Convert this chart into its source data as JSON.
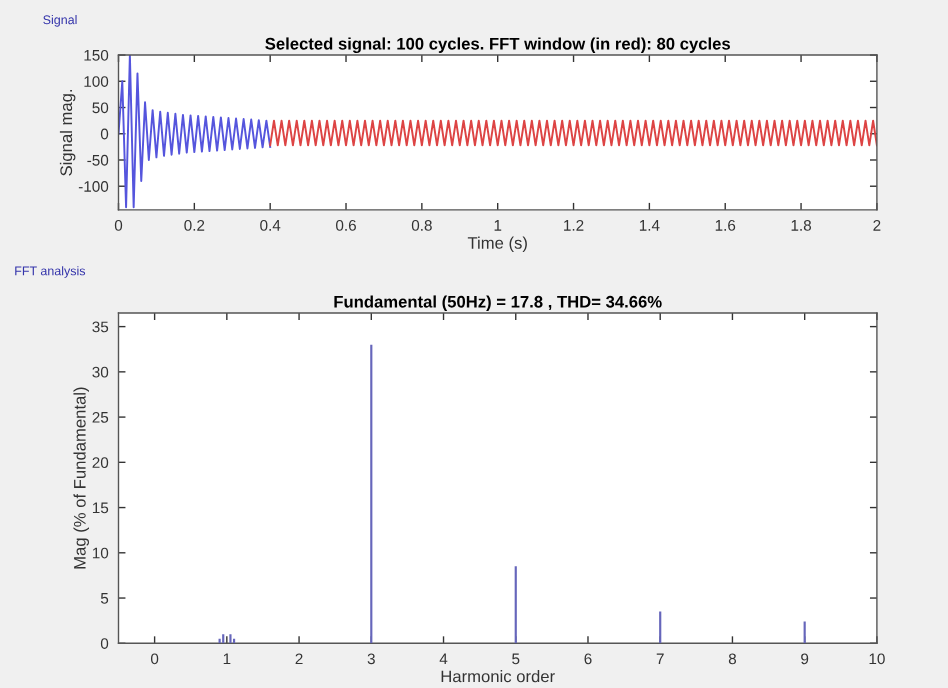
{
  "chart_data": [
    {
      "type": "line",
      "title": "Selected signal: 100 cycles. FFT window (in red): 80 cycles",
      "xlabel": "Time (s)",
      "ylabel": "Signal mag.",
      "annotations": [
        "Signal"
      ],
      "xlim": [
        0,
        2
      ],
      "ylim": [
        -145,
        150
      ],
      "xticks": [
        0,
        0.2,
        0.4,
        0.6,
        0.8,
        1,
        1.2,
        1.4,
        1.6,
        1.8,
        2
      ],
      "yticks": [
        -100,
        -50,
        0,
        50,
        100,
        150
      ],
      "grid": false,
      "series": [
        {
          "color": "#5555dd",
          "x": [
            0,
            0.01,
            0.02,
            0.03,
            0.04,
            0.05,
            0.06,
            0.07,
            0.08,
            0.09,
            0.1,
            0.11,
            0.12,
            0.13,
            0.14,
            0.15,
            0.16,
            0.17,
            0.18,
            0.19,
            0.2,
            0.21,
            0.22,
            0.23,
            0.24,
            0.25,
            0.26,
            0.27,
            0.28,
            0.29,
            0.3,
            0.31,
            0.32,
            0.33,
            0.34,
            0.35,
            0.36,
            0.37,
            0.38,
            0.39,
            0.4
          ],
          "values": [
            0,
            100,
            -140,
            150,
            -140,
            115,
            -90,
            60,
            -50,
            45,
            -45,
            42,
            -42,
            40,
            -40,
            38,
            -38,
            36,
            -36,
            35,
            -35,
            34,
            -34,
            33,
            -33,
            32,
            -32,
            31,
            -31,
            30,
            -30,
            29,
            -29,
            28,
            -28,
            27,
            -27,
            26,
            -26,
            25,
            -25
          ]
        },
        {
          "color": "#dd4444",
          "x": [
            0.4,
            0.41,
            0.42,
            0.43,
            0.44,
            0.45,
            0.46,
            0.47,
            0.48,
            0.49,
            0.5,
            0.51,
            0.52,
            0.53,
            0.54,
            0.55,
            0.56,
            0.57,
            0.58,
            0.59,
            0.6,
            0.61,
            0.62,
            0.63,
            0.64,
            0.65,
            0.66,
            0.67,
            0.68,
            0.69,
            0.7,
            0.71,
            0.72,
            0.73,
            0.74,
            0.75,
            0.76,
            0.77,
            0.78,
            0.79,
            0.8,
            0.81,
            0.82,
            0.83,
            0.84,
            0.85,
            0.86,
            0.87,
            0.88,
            0.89,
            0.9,
            0.91,
            0.92,
            0.93,
            0.94,
            0.95,
            0.96,
            0.97,
            0.98,
            0.99,
            1,
            1.01,
            1.02,
            1.03,
            1.04,
            1.05,
            1.06,
            1.07,
            1.08,
            1.09,
            1.1,
            1.11,
            1.12,
            1.13,
            1.14,
            1.15,
            1.16,
            1.17,
            1.18,
            1.19,
            1.2,
            1.21,
            1.22,
            1.23,
            1.24,
            1.25,
            1.26,
            1.27,
            1.28,
            1.29,
            1.3,
            1.31,
            1.32,
            1.33,
            1.34,
            1.35,
            1.36,
            1.37,
            1.38,
            1.39,
            1.4,
            1.41,
            1.42,
            1.43,
            1.44,
            1.45,
            1.46,
            1.47,
            1.48,
            1.49,
            1.5,
            1.51,
            1.52,
            1.53,
            1.54,
            1.55,
            1.56,
            1.57,
            1.58,
            1.59,
            1.6,
            1.61,
            1.62,
            1.63,
            1.64,
            1.65,
            1.66,
            1.67,
            1.68,
            1.69,
            1.7,
            1.71,
            1.72,
            1.73,
            1.74,
            1.75,
            1.76,
            1.77,
            1.78,
            1.79,
            1.8,
            1.81,
            1.82,
            1.83,
            1.84,
            1.85,
            1.86,
            1.87,
            1.88,
            1.89,
            1.9,
            1.91,
            1.92,
            1.93,
            1.94,
            1.95,
            1.96,
            1.97,
            1.98,
            1.99,
            2
          ],
          "values": [
            -22,
            25,
            -22,
            25,
            -22,
            25,
            -22,
            25,
            -22,
            25,
            -22,
            25,
            -22,
            25,
            -22,
            25,
            -22,
            25,
            -22,
            25,
            -22,
            25,
            -22,
            25,
            -22,
            25,
            -22,
            25,
            -22,
            25,
            -22,
            25,
            -22,
            25,
            -22,
            25,
            -22,
            25,
            -22,
            25,
            -22,
            25,
            -22,
            25,
            -22,
            25,
            -22,
            25,
            -22,
            25,
            -22,
            25,
            -22,
            25,
            -22,
            25,
            -22,
            25,
            -22,
            25,
            -22,
            25,
            -22,
            25,
            -22,
            25,
            -22,
            25,
            -22,
            25,
            -22,
            25,
            -22,
            25,
            -22,
            25,
            -22,
            25,
            -22,
            25,
            -22,
            25,
            -22,
            25,
            -22,
            25,
            -22,
            25,
            -22,
            25,
            -22,
            25,
            -22,
            25,
            -22,
            25,
            -22,
            25,
            -22,
            25,
            -22,
            25,
            -22,
            25,
            -22,
            25,
            -22,
            25,
            -22,
            25,
            -22,
            25,
            -22,
            25,
            -22,
            25,
            -22,
            25,
            -22,
            25,
            -22,
            25,
            -22,
            25,
            -22,
            25,
            -22,
            25,
            -22,
            25,
            -22,
            25,
            -22,
            25,
            -22,
            25,
            -22,
            25,
            -22,
            25,
            -22,
            25,
            -22,
            25,
            -22,
            25,
            -22,
            25,
            -22,
            25,
            -22,
            25,
            -22,
            25,
            -22,
            25,
            -22,
            25,
            -22,
            25,
            -22
          ]
        }
      ]
    },
    {
      "type": "bar",
      "title": "Fundamental (50Hz) = 17.8 , THD= 34.66%",
      "xlabel": "Harmonic order",
      "ylabel": "Mag (% of Fundamental)",
      "annotations": [
        "FFT analysis"
      ],
      "xlim": [
        -0.5,
        10
      ],
      "ylim": [
        0,
        36.5
      ],
      "xticks": [
        0,
        1,
        2,
        3,
        4,
        5,
        6,
        7,
        8,
        9,
        10
      ],
      "yticks": [
        0,
        5,
        10,
        15,
        20,
        25,
        30,
        35
      ],
      "grid": false,
      "x": [
        0.9,
        0.95,
        1,
        1.05,
        1.1,
        3,
        5,
        7,
        9
      ],
      "values": [
        0.5,
        1,
        null,
        1,
        0.5,
        33,
        8.5,
        3.5,
        2.4
      ],
      "color": "#6666bb"
    }
  ]
}
